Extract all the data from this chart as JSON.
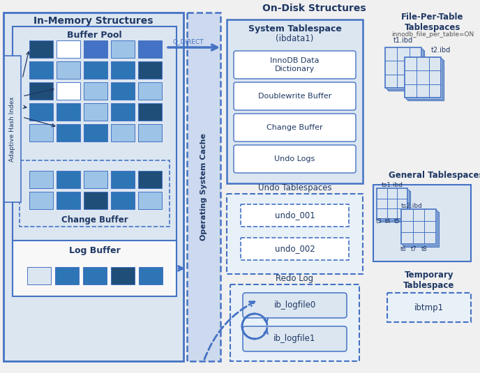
{
  "bg_color": "#f0f0f0",
  "title_left": "In-Memory Structures",
  "title_right": "On-Disk Structures",
  "cell_colors_bp": [
    [
      "#1f4e79",
      "#ffffff",
      "#4472c4",
      "#9dc3e6",
      "#4472c4"
    ],
    [
      "#2e75b6",
      "#9dc3e6",
      "#2e75b6",
      "#2e75b6",
      "#1f4e79"
    ],
    [
      "#1f4e79",
      "#ffffff",
      "#9dc3e6",
      "#2e75b6",
      "#9dc3e6"
    ],
    [
      "#2e75b6",
      "#2e75b6",
      "#9dc3e6",
      "#2e75b6",
      "#1f4e79"
    ],
    [
      "#9dc3e6",
      "#2e75b6",
      "#2e75b6",
      "#9dc3e6",
      "#9dc3e6"
    ]
  ],
  "cell_colors_cb": [
    [
      "#9dc3e6",
      "#2e75b6",
      "#9dc3e6",
      "#2e75b6",
      "#1f4e79"
    ],
    [
      "#9dc3e6",
      "#2e75b6",
      "#1f4e79",
      "#2e75b6",
      "#9dc3e6"
    ]
  ],
  "log_buffer_colors": [
    "#dce6f1",
    "#2e75b6",
    "#2e75b6",
    "#1f4e79",
    "#2e75b6"
  ],
  "system_ts_items": [
    "InnoDB Data\nDictionary",
    "Doublewrite Buffer",
    "Change Buffer",
    "Undo Logs"
  ],
  "undo_ts_items": [
    "undo_001",
    "undo_002"
  ],
  "redo_log_items": [
    "ib_logfile0",
    "ib_logfile1"
  ],
  "file_per_table_title": "File-Per-Table\nTablespaces",
  "file_per_table_subtitle": "innodb_file_per_table=ON",
  "general_ts_title": "General Tablespaces",
  "temp_ts_title": "Temporary\nTablespace",
  "temp_ts_item": "ibtmp1",
  "blue_edge": "#4472c4",
  "dark_blue": "#1f3864",
  "fill_light": "#dce6f1",
  "fill_mid": "#b4c7e7"
}
